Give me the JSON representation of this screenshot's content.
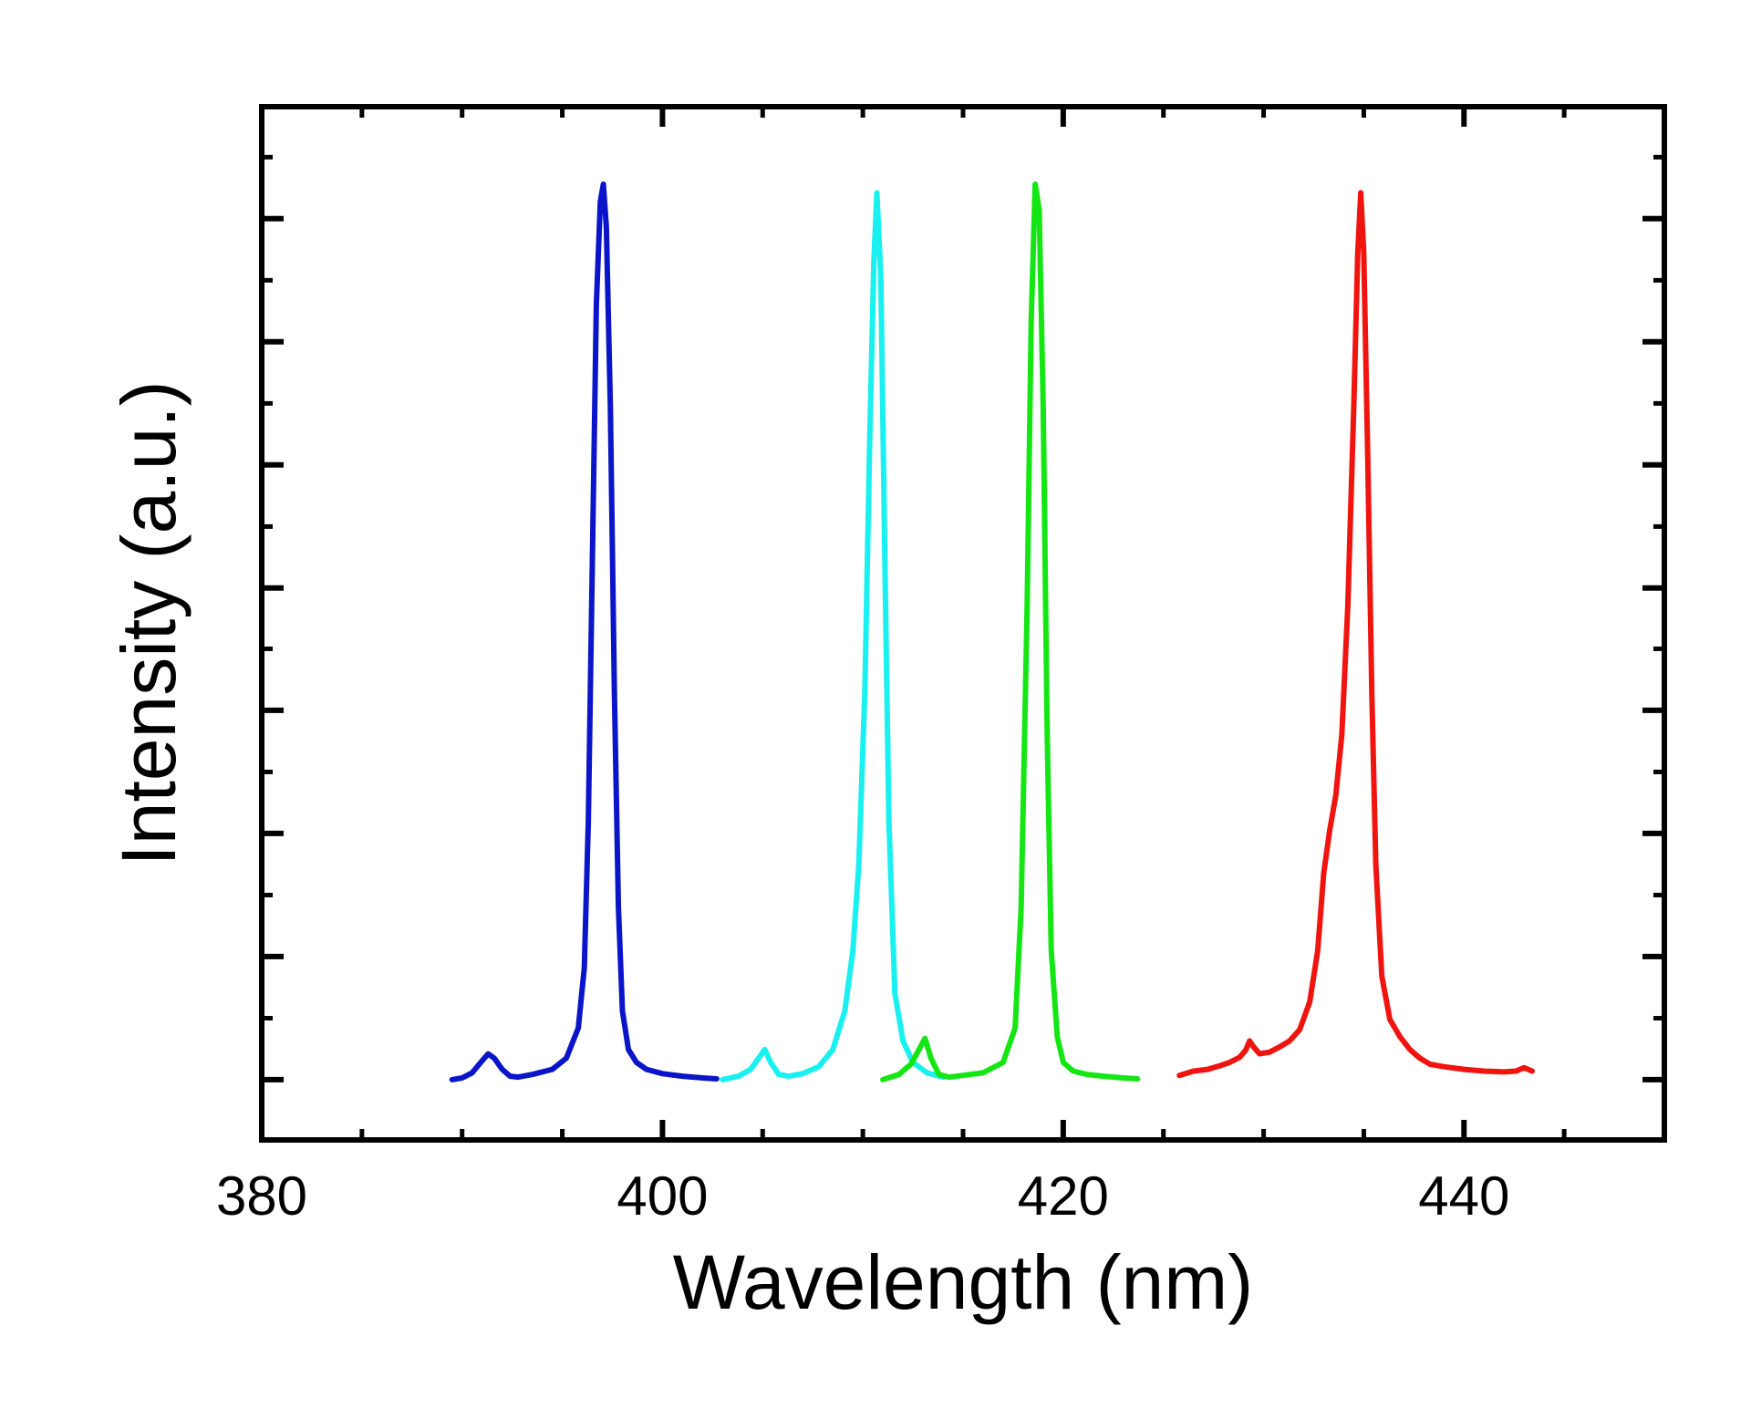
{
  "chart_data": {
    "type": "line",
    "title": "",
    "xlabel": "Wavelength (nm)",
    "ylabel": "Intensity (a.u.)",
    "xlim": [
      380,
      450
    ],
    "ylim": [
      -0.07,
      1.13
    ],
    "x_ticks": [
      380,
      400,
      420,
      440
    ],
    "x_tick_labels": [
      "380",
      "400",
      "420",
      "440"
    ],
    "x_minor_step": 5,
    "y_major_ticks": [
      0,
      0.143,
      0.286,
      0.429,
      0.571,
      0.714,
      0.857,
      1.0
    ],
    "y_minor_step": 0.0714,
    "y_tick_labels_shown": false,
    "grid": false,
    "legend": "none",
    "series": [
      {
        "color": "#0a14c8",
        "x": [
          389.5,
          390.0,
          390.5,
          391.0,
          391.3,
          391.6,
          392.0,
          392.4,
          392.8,
          393.5,
          394.5,
          395.2,
          395.8,
          396.1,
          396.3,
          396.5,
          396.7,
          396.9,
          397.05,
          397.2,
          397.4,
          397.6,
          397.8,
          398.0,
          398.3,
          398.7,
          399.2,
          400.0,
          401.0,
          402.0,
          402.7
        ],
        "y": [
          0.0,
          0.002,
          0.008,
          0.022,
          0.03,
          0.025,
          0.012,
          0.004,
          0.003,
          0.006,
          0.012,
          0.025,
          0.06,
          0.13,
          0.3,
          0.6,
          0.9,
          1.02,
          1.04,
          0.99,
          0.78,
          0.45,
          0.2,
          0.08,
          0.035,
          0.02,
          0.012,
          0.007,
          0.004,
          0.002,
          0.001
        ]
      },
      {
        "color": "#19f0f0",
        "x": [
          403.0,
          403.8,
          404.4,
          404.8,
          405.1,
          405.4,
          405.8,
          406.3,
          407.0,
          407.8,
          408.5,
          409.1,
          409.5,
          409.8,
          410.1,
          410.35,
          410.55,
          410.7,
          410.9,
          411.1,
          411.3,
          411.6,
          412.0,
          412.5,
          413.2,
          414.0
        ],
        "y": [
          0.0,
          0.004,
          0.012,
          0.025,
          0.035,
          0.02,
          0.006,
          0.004,
          0.007,
          0.015,
          0.035,
          0.08,
          0.15,
          0.25,
          0.45,
          0.75,
          0.95,
          1.03,
          0.93,
          0.6,
          0.3,
          0.1,
          0.045,
          0.02,
          0.008,
          0.003
        ]
      },
      {
        "color": "#14e614",
        "x": [
          411.0,
          411.8,
          412.4,
          412.8,
          413.1,
          413.4,
          413.8,
          414.3,
          415.0,
          416.0,
          417.0,
          417.6,
          417.9,
          418.2,
          418.4,
          418.6,
          418.8,
          419.0,
          419.2,
          419.4,
          419.7,
          420.0,
          420.5,
          421.2,
          422.0,
          423.0,
          423.7
        ],
        "y": [
          0.0,
          0.006,
          0.018,
          0.035,
          0.048,
          0.025,
          0.006,
          0.003,
          0.005,
          0.008,
          0.02,
          0.06,
          0.2,
          0.55,
          0.88,
          1.04,
          1.01,
          0.78,
          0.4,
          0.15,
          0.05,
          0.02,
          0.01,
          0.006,
          0.004,
          0.002,
          0.001
        ]
      },
      {
        "color": "#f0140f",
        "x": [
          425.8,
          426.5,
          427.2,
          427.8,
          428.3,
          428.8,
          429.1,
          429.3,
          429.5,
          429.8,
          430.3,
          430.8,
          431.3,
          431.8,
          432.3,
          432.7,
          433.0,
          433.3,
          433.6,
          433.9,
          434.2,
          434.5,
          434.7,
          434.85,
          435.0,
          435.2,
          435.4,
          435.6,
          435.9,
          436.3,
          436.8,
          437.3,
          437.8,
          438.3,
          439.0,
          440.0,
          441.0,
          442.0,
          442.6,
          443.0,
          443.4
        ],
        "y": [
          0.005,
          0.01,
          0.012,
          0.016,
          0.02,
          0.026,
          0.034,
          0.045,
          0.038,
          0.03,
          0.032,
          0.038,
          0.045,
          0.058,
          0.09,
          0.15,
          0.24,
          0.29,
          0.33,
          0.4,
          0.55,
          0.78,
          0.96,
          1.03,
          0.96,
          0.72,
          0.45,
          0.25,
          0.12,
          0.07,
          0.05,
          0.035,
          0.025,
          0.018,
          0.015,
          0.012,
          0.01,
          0.009,
          0.01,
          0.014,
          0.01
        ]
      }
    ]
  }
}
